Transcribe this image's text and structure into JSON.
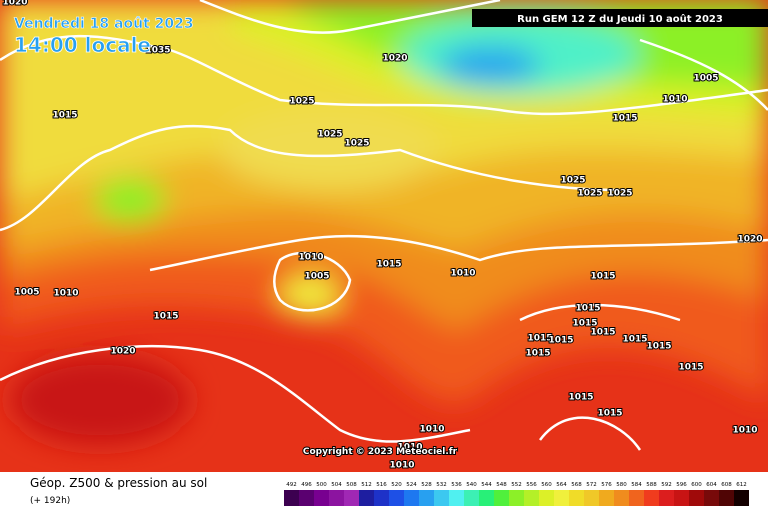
{
  "header": {
    "date": "Vendredi 18 août 2023",
    "time": "14:00 locale",
    "run": "Run GEM 12 Z du Jeudi 10 août 2023"
  },
  "copyright": "Copyright © 2023 Meteociel.fr",
  "footer": {
    "title": "Géop. Z500 & pression au sol",
    "lead": "(+ 192h)"
  },
  "isobar_labels": [
    "1020",
    "1035",
    "1015",
    "1020",
    "1025",
    "1025",
    "1025",
    "1005",
    "1010",
    "1015",
    "1025",
    "1025",
    "1025",
    "1020",
    "1010",
    "1005",
    "1015",
    "1010",
    "1005",
    "1010",
    "1015",
    "1015",
    "1015",
    "1015",
    "1015",
    "1015",
    "1015",
    "1015",
    "1015",
    "1015",
    "1015",
    "1020",
    "1015",
    "1015",
    "1010",
    "1010",
    "1010",
    "1010"
  ],
  "legend": {
    "labels": [
      "492",
      "496",
      "500",
      "504",
      "508",
      "512",
      "516",
      "520",
      "524",
      "528",
      "532",
      "536",
      "540",
      "544",
      "548",
      "552",
      "556",
      "560",
      "564",
      "568",
      "572",
      "576",
      "580",
      "584",
      "588",
      "592",
      "596",
      "600",
      "604",
      "608",
      "612"
    ],
    "colors": [
      "#3c0050",
      "#5a0070",
      "#780090",
      "#8c14a0",
      "#a028b4",
      "#1e1ea0",
      "#1e32c8",
      "#1e50e6",
      "#1e78f0",
      "#28a0f0",
      "#3cc8f0",
      "#50f0f0",
      "#3cf0b4",
      "#28f078",
      "#50f03c",
      "#8cf028",
      "#b4f028",
      "#dcf028",
      "#f0f03c",
      "#f0dc28",
      "#f0c828",
      "#f0aa1e",
      "#f08c1e",
      "#f0641e",
      "#f03c1e",
      "#dc1e1e",
      "#c81414",
      "#a00a0a",
      "#780a0a",
      "#500505",
      "#140000"
    ]
  }
}
